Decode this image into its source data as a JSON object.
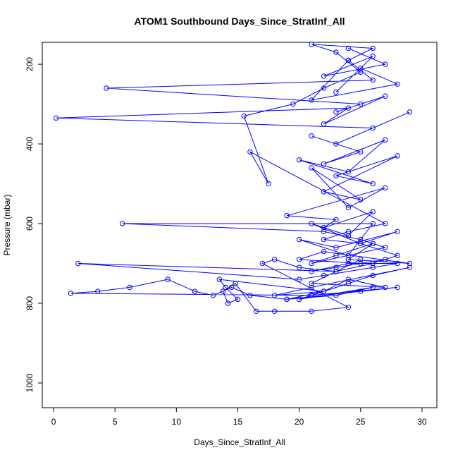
{
  "chart_data": {
    "type": "line",
    "title": "ATOM1 Southbound Days_Since_StratInf_All",
    "x_label": "Days_Since_StratInf_All",
    "y_label": "Pressure (mbar)",
    "xlim": [
      -0.92,
      31.21
    ],
    "ylim": [
      145,
      1062
    ],
    "y_reversed": true,
    "xticks": [
      0,
      5,
      10,
      15,
      20,
      25,
      30
    ],
    "yticks": [
      200,
      400,
      600,
      800,
      1000
    ],
    "series": [
      {
        "color": "#0000ff",
        "x": [
          24,
          27,
          22,
          26,
          23,
          25,
          28,
          21,
          24,
          26,
          4.3,
          25,
          23,
          27,
          22,
          24,
          0.2,
          26,
          29,
          23,
          21,
          25,
          22,
          27,
          24,
          20,
          26,
          23,
          28,
          22,
          25,
          21,
          24,
          27,
          19,
          23,
          22,
          26,
          24,
          21,
          25,
          28,
          23,
          20,
          24,
          26,
          5.6,
          22,
          25,
          27,
          21,
          23,
          26,
          24,
          29,
          22,
          20,
          25,
          23,
          27,
          21,
          24,
          28,
          22,
          26,
          20,
          2.0,
          23,
          25,
          21,
          27,
          24,
          22,
          26,
          29,
          21,
          18,
          22,
          24,
          20,
          26,
          23,
          19,
          25,
          28,
          21,
          1.4,
          3.6,
          6.2,
          9.3,
          11.5,
          13,
          14.5,
          16,
          19,
          22,
          13.5,
          14,
          15,
          14.2,
          13.8,
          14.8,
          16.5,
          18,
          21,
          24,
          17,
          18,
          20,
          23,
          26,
          28,
          25,
          22,
          24,
          27,
          16,
          17.5,
          15.5,
          19.5,
          22,
          25,
          23,
          21,
          26,
          24
        ],
        "values": [
          160,
          200,
          230,
          180,
          270,
          210,
          250,
          290,
          190,
          240,
          260,
          300,
          320,
          280,
          350,
          310,
          335,
          360,
          320,
          400,
          380,
          420,
          450,
          390,
          470,
          440,
          500,
          480,
          430,
          520,
          540,
          460,
          560,
          510,
          580,
          590,
          610,
          570,
          630,
          600,
          650,
          620,
          660,
          640,
          680,
          600,
          600,
          620,
          640,
          660,
          700,
          680,
          650,
          690,
          700,
          670,
          690,
          700,
          710,
          690,
          720,
          700,
          700,
          730,
          710,
          740,
          700,
          720,
          690,
          750,
          760,
          740,
          770,
          730,
          710,
          760,
          780,
          770,
          750,
          790,
          760,
          780,
          790,
          770,
          760,
          780,
          775,
          770,
          760,
          740,
          770,
          780,
          760,
          780,
          790,
          770,
          740,
          760,
          790,
          800,
          770,
          750,
          820,
          820,
          820,
          810,
          700,
          690,
          710,
          720,
          700,
          680,
          650,
          640,
          620,
          600,
          420,
          500,
          330,
          300,
          260,
          220,
          170,
          150,
          160,
          190
        ]
      }
    ]
  }
}
